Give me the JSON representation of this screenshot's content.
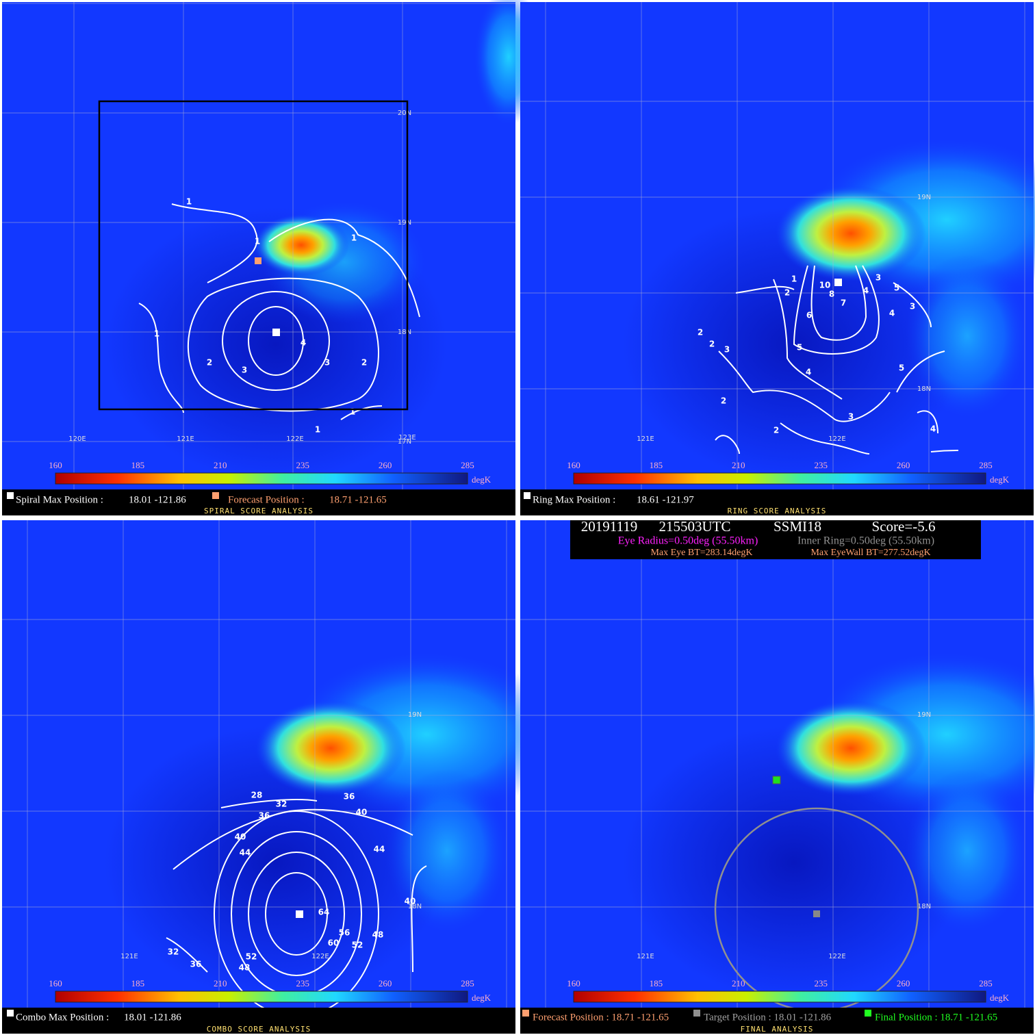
{
  "colorbar": {
    "ticks": [
      160,
      185,
      210,
      235,
      260,
      285
    ],
    "unit": "degK"
  },
  "panels": [
    {
      "grid_labels": [
        "20N",
        "19N",
        "18N",
        "17N",
        "120E",
        "121E",
        "122E",
        "123E"
      ],
      "contour_labels": [
        "1",
        "1",
        "1",
        "1",
        "2",
        "3",
        "4",
        "3",
        "2",
        "1",
        "1"
      ],
      "footer": [
        "Spiral Max Position :",
        "18.01 -121.86",
        "Forecast Position :",
        "18.71 -121.65"
      ],
      "title": "SPIRAL SCORE ANALYSIS"
    },
    {
      "grid_labels": [
        "19N",
        "18N",
        "121E",
        "122E"
      ],
      "contour_labels": [
        "1",
        "2",
        "3",
        "5",
        "3",
        "4",
        "4",
        "6",
        "7",
        "8",
        "10",
        "2",
        "2",
        "3",
        "5",
        "4",
        "5",
        "2",
        "3",
        "2",
        "4"
      ],
      "footer": [
        "Ring Max Position :",
        "18.61 -121.97"
      ],
      "title": "RING SCORE ANALYSIS"
    },
    {
      "grid_labels": [
        "19N",
        "18N",
        "121E",
        "122E"
      ],
      "contour_labels": [
        "28",
        "32",
        "36",
        "40",
        "36",
        "40",
        "44",
        "44",
        "40",
        "64",
        "56",
        "48",
        "60",
        "52",
        "52",
        "32",
        "36",
        "48"
      ],
      "footer": [
        "Combo Max Position :",
        "18.01 -121.86"
      ],
      "title": "COMBO SCORE ANALYSIS"
    },
    {
      "grid_labels": [
        "19N",
        "18N",
        "121E",
        "122E"
      ],
      "contour_labels": [],
      "footer": [
        "Forecast Position : 18.71 -121.65",
        "Target Position : 18.01 -121.86",
        "Final Position : 18.71 -121.65"
      ],
      "title": "FINAL ANALYSIS"
    }
  ],
  "header": {
    "line1": [
      "20191119",
      "215503UTC",
      "SSMI18",
      "Score=-5.6"
    ],
    "line2": [
      "Eye Radius=0.50deg (55.50km)",
      "Inner Ring=0.50deg (55.50km)"
    ],
    "line3": [
      "Max Eye BT=283.14degK",
      "Max EyeWall BT=277.52degK"
    ]
  }
}
